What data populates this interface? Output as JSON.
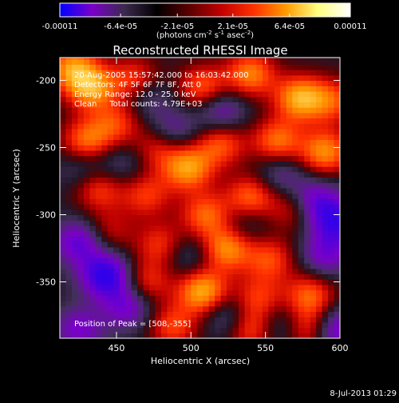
{
  "colorbar": {
    "tick_labels": [
      "-0.00011",
      "-6.4e-05",
      "-2.1e-05",
      "2.1e-05",
      "6.4e-05",
      "0.00011"
    ],
    "ticks": [
      -0.00011,
      -6.4e-05,
      -2.1e-05,
      2.1e-05,
      6.4e-05,
      0.00011
    ],
    "range": [
      -0.00011,
      0.00011
    ],
    "unit_text": "(photons cm",
    "unit_sup1": "-2",
    "unit_mid": " s",
    "unit_sup2": "-1",
    "unit_end": " asec",
    "unit_sup3": "-2",
    "unit_close": ")",
    "colors": [
      "#0000ff",
      "#7a00c8",
      "#3b2a4e",
      "#000000",
      "#5a0000",
      "#c00000",
      "#ff3000",
      "#ff9a00",
      "#ffff80",
      "#ffffff"
    ]
  },
  "chart_data": {
    "type": "heatmap",
    "title": "Reconstructed RHESSI Image",
    "xlabel": "Heliocentric X (arcsec)",
    "ylabel": "Heliocentric Y (arcsec)",
    "xlim": [
      412,
      600
    ],
    "ylim": [
      -392,
      -183
    ],
    "xticks": [
      450,
      500,
      550,
      600
    ],
    "yticks": [
      -200,
      -250,
      -300,
      -350
    ],
    "peak": {
      "x": 508,
      "y": -355
    },
    "value_range": [
      -0.00011,
      0.00011
    ],
    "annotations": {
      "line1": "20-Aug-2005 15:57:42.000 to 16:03:42.000",
      "line2": "Detectors: 4F 5F 6F 7F 8F, Att 0",
      "line3": "Energy Range: 12.0 - 25.0 keV",
      "line4": "Clean     Total counts: 4.79E+03",
      "peak_label": "Position of Peak = [508,-355]"
    },
    "blobs": [
      {
        "x": 420,
        "y": -190,
        "v": 0.8
      },
      {
        "x": 433,
        "y": -205,
        "v": 0.9
      },
      {
        "x": 463,
        "y": -200,
        "v": 0.7
      },
      {
        "x": 508,
        "y": -205,
        "v": 0.7
      },
      {
        "x": 540,
        "y": -195,
        "v": 0.8
      },
      {
        "x": 573,
        "y": -213,
        "v": 0.95
      },
      {
        "x": 595,
        "y": -215,
        "v": 0.6
      },
      {
        "x": 430,
        "y": -245,
        "v": 0.75
      },
      {
        "x": 450,
        "y": -232,
        "v": 0.55
      },
      {
        "x": 478,
        "y": -250,
        "v": 0.5
      },
      {
        "x": 498,
        "y": -265,
        "v": 0.9
      },
      {
        "x": 520,
        "y": -247,
        "v": 0.65
      },
      {
        "x": 558,
        "y": -245,
        "v": 0.75
      },
      {
        "x": 590,
        "y": -253,
        "v": 0.85
      },
      {
        "x": 438,
        "y": -280,
        "v": 0.6
      },
      {
        "x": 470,
        "y": -285,
        "v": 0.55
      },
      {
        "x": 510,
        "y": -300,
        "v": 0.7
      },
      {
        "x": 540,
        "y": -287,
        "v": 0.75
      },
      {
        "x": 570,
        "y": -295,
        "v": 0.55
      },
      {
        "x": 445,
        "y": -312,
        "v": 0.4
      },
      {
        "x": 480,
        "y": -322,
        "v": 0.55
      },
      {
        "x": 524,
        "y": -325,
        "v": 0.85
      },
      {
        "x": 553,
        "y": -333,
        "v": 0.6
      },
      {
        "x": 470,
        "y": -350,
        "v": 0.55
      },
      {
        "x": 508,
        "y": -357,
        "v": 1.0
      },
      {
        "x": 545,
        "y": -362,
        "v": 0.55
      },
      {
        "x": 580,
        "y": -360,
        "v": 0.7
      },
      {
        "x": 488,
        "y": -383,
        "v": 0.6
      },
      {
        "x": 540,
        "y": -385,
        "v": 0.65
      },
      {
        "x": 578,
        "y": -385,
        "v": 0.6
      },
      {
        "x": 470,
        "y": -210,
        "v": -0.45
      },
      {
        "x": 520,
        "y": -222,
        "v": -0.55
      },
      {
        "x": 428,
        "y": -265,
        "v": -0.35
      },
      {
        "x": 488,
        "y": -238,
        "v": -0.45
      },
      {
        "x": 560,
        "y": -270,
        "v": -0.4
      },
      {
        "x": 582,
        "y": -290,
        "v": -0.75
      },
      {
        "x": 598,
        "y": -305,
        "v": -0.8
      },
      {
        "x": 590,
        "y": -330,
        "v": -0.55
      },
      {
        "x": 425,
        "y": -320,
        "v": -0.7
      },
      {
        "x": 443,
        "y": -345,
        "v": -1.0
      },
      {
        "x": 458,
        "y": -368,
        "v": -0.6
      },
      {
        "x": 425,
        "y": -385,
        "v": -0.55
      },
      {
        "x": 498,
        "y": -330,
        "v": -0.35
      },
      {
        "x": 536,
        "y": -305,
        "v": -0.3
      },
      {
        "x": 525,
        "y": -375,
        "v": -0.45
      },
      {
        "x": 598,
        "y": -385,
        "v": -0.7
      },
      {
        "x": 560,
        "y": -382,
        "v": -0.4
      },
      {
        "x": 453,
        "y": -262,
        "v": -0.3
      }
    ]
  },
  "footer": {
    "date": "8-Jul-2013 01:29"
  }
}
